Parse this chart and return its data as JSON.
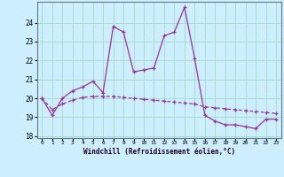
{
  "xlabel": "Windchill (Refroidissement éolien,°C)",
  "bg_color": "#cceeff",
  "line_color": "#993399",
  "hours": [
    0,
    1,
    2,
    3,
    4,
    5,
    6,
    7,
    8,
    9,
    10,
    11,
    12,
    13,
    14,
    15,
    16,
    17,
    18,
    19,
    20,
    21,
    22,
    23
  ],
  "temp1": [
    20.0,
    19.1,
    20.0,
    20.4,
    20.6,
    20.9,
    20.3,
    23.8,
    23.5,
    21.4,
    21.5,
    21.6,
    23.3,
    23.5,
    24.8,
    22.1,
    19.1,
    18.8,
    18.6,
    18.6,
    18.5,
    18.4,
    18.9,
    18.9
  ],
  "temp2": [
    20.0,
    19.4,
    19.7,
    19.9,
    20.05,
    20.1,
    20.1,
    20.1,
    20.05,
    20.0,
    19.95,
    19.9,
    19.85,
    19.8,
    19.75,
    19.7,
    19.55,
    19.5,
    19.45,
    19.4,
    19.35,
    19.3,
    19.25,
    19.2
  ],
  "ylim": [
    17.9,
    25.1
  ],
  "yticks": [
    18,
    19,
    20,
    21,
    22,
    23,
    24
  ],
  "grid_color": "#aaddcc",
  "marker": "+"
}
